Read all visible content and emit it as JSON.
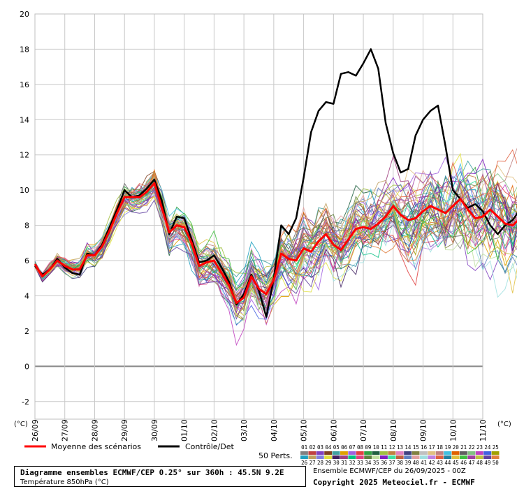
{
  "chart_data": {
    "type": "line",
    "title": "Diagramme ensembles ECMWF/CEP 0.25° sur 360h : 45.5N 9.2E",
    "subtitle": "Température 850hPa (°C)",
    "ylabel": "(°C)",
    "y_unit_right": "(°C)",
    "ylim": [
      -3,
      20
    ],
    "y_ticks": [
      -2,
      0,
      2,
      4,
      6,
      8,
      10,
      12,
      14,
      16,
      18,
      20
    ],
    "x_tick_labels": [
      "26/09",
      "27/09",
      "28/09",
      "29/09",
      "30/09",
      "01/10",
      "02/10",
      "03/10",
      "04/10",
      "05/10",
      "06/10",
      "07/10",
      "08/10",
      "09/10",
      "10/10",
      "11/10"
    ],
    "x_step_hours": 6,
    "grid": true,
    "legend_placement": "bottom",
    "series": [
      {
        "name": "Moyenne des scénarios",
        "color": "#ff0000",
        "values": [
          5.8,
          5.1,
          5.5,
          6.0,
          5.7,
          5.5,
          5.5,
          6.3,
          6.3,
          6.8,
          7.7,
          8.7,
          9.6,
          9.6,
          9.6,
          9.9,
          10.4,
          9.0,
          7.6,
          8.0,
          7.9,
          7.0,
          5.7,
          5.9,
          6.0,
          5.3,
          4.6,
          3.6,
          3.9,
          5.1,
          4.4,
          4.1,
          4.9,
          6.4,
          6.1,
          6.0,
          6.7,
          6.5,
          7.1,
          7.5,
          6.9,
          6.6,
          7.2,
          7.8,
          7.9,
          7.8,
          8.1,
          8.5,
          9.1,
          8.6,
          8.3,
          8.4,
          8.8,
          9.1,
          8.9,
          8.7,
          9.1,
          9.5,
          8.9,
          8.4,
          8.5,
          8.9,
          8.5,
          8.1,
          8.0,
          8.4,
          8.7,
          8.2
        ]
      },
      {
        "name": "Contrôle/Det",
        "color": "#000000",
        "values": [
          5.7,
          5.2,
          5.5,
          6.1,
          5.6,
          5.3,
          5.2,
          6.4,
          6.3,
          6.9,
          7.9,
          8.9,
          10.0,
          9.6,
          9.7,
          10.1,
          10.6,
          9.4,
          7.5,
          8.5,
          8.4,
          7.2,
          5.9,
          6.0,
          6.3,
          5.6,
          4.8,
          3.5,
          4.1,
          5.2,
          4.3,
          2.8,
          5.0,
          8.0,
          7.5,
          8.4,
          10.7,
          13.3,
          14.5,
          15.0,
          14.9,
          16.6,
          16.7,
          16.5,
          17.2,
          18.0,
          16.9,
          13.8,
          12.1,
          11.0,
          11.2,
          13.1,
          14.0,
          14.5,
          14.8,
          12.5,
          10.0,
          9.5,
          9.0,
          9.2,
          8.8,
          8.0,
          7.5,
          8.0,
          8.3,
          8.9,
          8.8,
          8.6
        ]
      }
    ],
    "members_count": 50,
    "member_labels": [
      "01",
      "02",
      "03",
      "04",
      "05",
      "06",
      "07",
      "08",
      "09",
      "10",
      "11",
      "12",
      "13",
      "14",
      "15",
      "16",
      "17",
      "18",
      "19",
      "20",
      "21",
      "22",
      "23",
      "24",
      "25",
      "26",
      "27",
      "28",
      "29",
      "30",
      "31",
      "32",
      "33",
      "34",
      "35",
      "36",
      "37",
      "38",
      "39",
      "40",
      "41",
      "42",
      "43",
      "44",
      "45",
      "46",
      "47",
      "48",
      "49",
      "50"
    ],
    "member_colors": [
      "#808080",
      "#c04040",
      "#8040c0",
      "#804020",
      "#40a0a0",
      "#e0a000",
      "#a060e0",
      "#e04040",
      "#30a040",
      "#206040",
      "#a0c040",
      "#c08040",
      "#e080c0",
      "#404080",
      "#808040",
      "#c0c0c0",
      "#e0c080",
      "#c08080",
      "#40c0e0",
      "#e06000",
      "#606060",
      "#80c080",
      "#c040c0",
      "#4060e0",
      "#a0a000",
      "#20a0c0",
      "#c0a060",
      "#8080e0",
      "#e0e040",
      "#402060",
      "#a04080",
      "#00c080",
      "#e04080",
      "#608040",
      "#c0e0a0",
      "#8020c0",
      "#40e0a0",
      "#c06040",
      "#6080c0",
      "#e0a0a0",
      "#a0e0e0",
      "#c080e0",
      "#e06040",
      "#2080a0",
      "#e0c040",
      "#40c040",
      "#a040a0",
      "#c0c040",
      "#6040a0",
      "#e08040"
    ],
    "members_label": "50 Perts.",
    "footer": {
      "title": "Diagramme ensembles ECMWF/CEP 0.25° sur 360h : 45.5N 9.2E",
      "subtitle": "Température 850hPa (°C)",
      "ensemble": "Ensemble ECMWF/CEP du 26/09/2025 - 00Z",
      "copyright": "Copyright 2025 Meteociel.fr - ECMWF"
    }
  }
}
